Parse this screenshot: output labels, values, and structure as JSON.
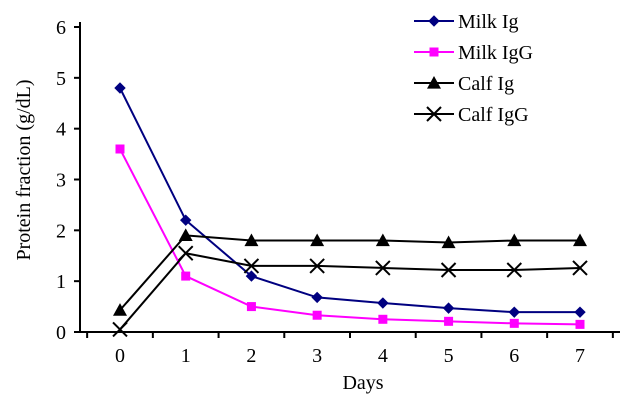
{
  "chart_data": {
    "type": "line",
    "title": "",
    "xlabel": "Days",
    "ylabel": "Protein fraction (g/dL)",
    "x": [
      0,
      1,
      2,
      3,
      4,
      5,
      6,
      7
    ],
    "xlim": [
      0,
      7
    ],
    "ylim": [
      0,
      6
    ],
    "yticks": [
      0,
      1,
      2,
      3,
      4,
      5,
      6
    ],
    "grid": false,
    "legend_position": "top-right",
    "series": [
      {
        "name": "Milk Ig",
        "color": "#000080",
        "marker": "diamond",
        "values": [
          4.8,
          2.2,
          1.1,
          0.68,
          0.57,
          0.47,
          0.39,
          0.39
        ]
      },
      {
        "name": "Milk IgG",
        "color": "#ff00ff",
        "marker": "square",
        "values": [
          3.6,
          1.1,
          0.5,
          0.33,
          0.25,
          0.21,
          0.17,
          0.15
        ]
      },
      {
        "name": "Calf Ig",
        "color": "#000000",
        "marker": "triangle",
        "values": [
          0.43,
          1.9,
          1.8,
          1.8,
          1.8,
          1.76,
          1.8,
          1.8
        ]
      },
      {
        "name": "Calf IgG",
        "color": "#000000",
        "marker": "x",
        "values": [
          0.05,
          1.55,
          1.3,
          1.3,
          1.26,
          1.22,
          1.22,
          1.26
        ]
      }
    ]
  }
}
